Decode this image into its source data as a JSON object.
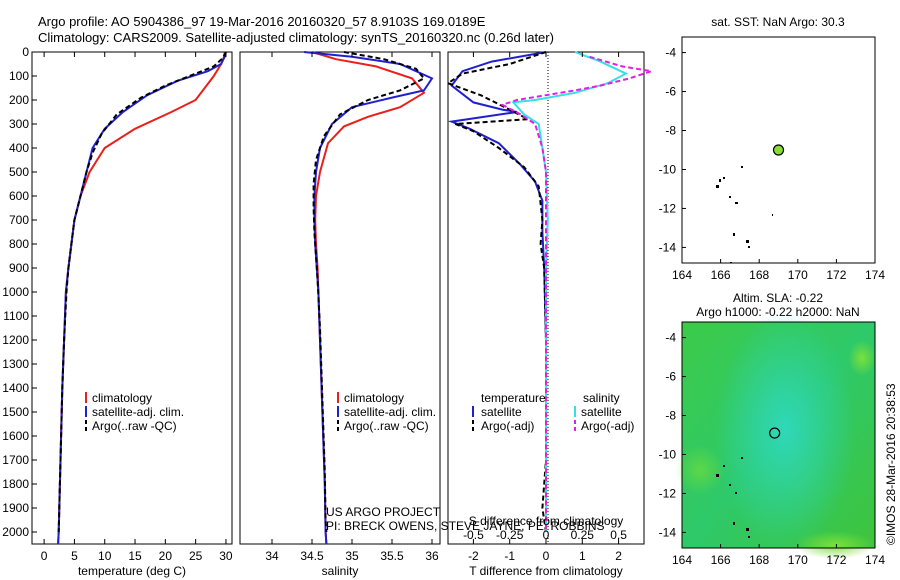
{
  "header": {
    "line1": "Argo profile: AO 5904386_97 19-Mar-2016 20160320_57 8.9103S 169.0189E",
    "line2": "Climatology: CARS2009. Satellite-adjusted climatology: synTS_20160320.nc (0.26d later)"
  },
  "side_label": "©IMOS 28-Mar-2016 20:38:53",
  "project_text": {
    "line1": "US ARGO PROJECT",
    "line2": "PI: BRECK OWENS, STEVE JAYNE, PE. ROBBINS"
  },
  "colors": {
    "climatology": "#e8201c",
    "satellite": "#2020d0",
    "argo": "#000000",
    "sal_sat": "#33e0e8",
    "sal_argo": "#e020e0",
    "map_dot": "#88dd33"
  },
  "chart_data": [
    {
      "type": "line",
      "id": "temperature",
      "xlabel": "temperature (deg C)",
      "ylabel": "",
      "xlim": [
        -2,
        31
      ],
      "ylim": [
        2050,
        0
      ],
      "xticks": [
        0,
        5,
        10,
        15,
        20,
        25,
        30
      ],
      "yticks": [
        0,
        100,
        200,
        300,
        400,
        500,
        600,
        700,
        800,
        900,
        1000,
        1100,
        1200,
        1300,
        1400,
        1500,
        1600,
        1700,
        1800,
        1900,
        2000
      ],
      "legend": [
        "climatology",
        "satellite-adj. clim.",
        "Argo(..raw -QC)"
      ],
      "series": [
        {
          "name": "climatology",
          "color": "#e8201c",
          "points": [
            [
              29.8,
              0
            ],
            [
              29.7,
              20
            ],
            [
              29.2,
              50
            ],
            [
              28,
              100
            ],
            [
              25,
              200
            ],
            [
              21,
              250
            ],
            [
              15,
              320
            ],
            [
              10,
              400
            ],
            [
              7.5,
              500
            ],
            [
              6,
              600
            ],
            [
              5,
              700
            ],
            [
              4.5,
              800
            ],
            [
              4,
              900
            ],
            [
              3.6,
              1000
            ],
            [
              3.3,
              1200
            ],
            [
              3,
              1400
            ],
            [
              2.8,
              1600
            ],
            [
              2.6,
              1800
            ],
            [
              2.4,
              2000
            ],
            [
              2.3,
              2050
            ]
          ]
        },
        {
          "name": "satellite-adj. clim.",
          "color": "#2020d0",
          "points": [
            [
              30,
              0
            ],
            [
              29.8,
              20
            ],
            [
              29.2,
              50
            ],
            [
              27,
              80
            ],
            [
              22,
              120
            ],
            [
              17,
              180
            ],
            [
              13,
              250
            ],
            [
              10,
              320
            ],
            [
              8,
              400
            ],
            [
              7,
              500
            ],
            [
              6,
              600
            ],
            [
              5,
              700
            ],
            [
              4.5,
              800
            ],
            [
              4,
              900
            ],
            [
              3.6,
              1000
            ],
            [
              3.3,
              1200
            ],
            [
              3,
              1400
            ],
            [
              2.8,
              1600
            ],
            [
              2.6,
              1800
            ],
            [
              2.4,
              2000
            ],
            [
              2.3,
              2050
            ]
          ]
        },
        {
          "name": "Argo(..raw -QC)",
          "color": "#000000",
          "points": [
            [
              30,
              0
            ],
            [
              29.5,
              25
            ],
            [
              28,
              60
            ],
            [
              24,
              100
            ],
            [
              20,
              140
            ],
            [
              16,
              190
            ],
            [
              12,
              260
            ],
            [
              9.5,
              340
            ],
            [
              8,
              420
            ],
            [
              7,
              500
            ],
            [
              6,
              600
            ],
            [
              5,
              700
            ],
            [
              4.5,
              800
            ],
            [
              4,
              900
            ],
            [
              3.7,
              1000
            ],
            [
              3.3,
              1200
            ],
            [
              3,
              1400
            ],
            [
              2.8,
              1600
            ],
            [
              2.6,
              1800
            ],
            [
              2.4,
              2000
            ]
          ]
        }
      ]
    },
    {
      "type": "line",
      "id": "salinity",
      "xlabel": "salinity",
      "xlim": [
        33.6,
        36.1
      ],
      "ylim": [
        2050,
        0
      ],
      "xticks": [
        34,
        34.5,
        35,
        35.5,
        36
      ],
      "legend": [
        "climatology",
        "satellite-adj. clim.",
        "Argo(..raw -QC)"
      ],
      "series": [
        {
          "name": "climatology",
          "color": "#e8201c",
          "points": [
            [
              34.5,
              0
            ],
            [
              34.8,
              30
            ],
            [
              35.3,
              60
            ],
            [
              35.75,
              110
            ],
            [
              35.9,
              170
            ],
            [
              35.6,
              230
            ],
            [
              35.2,
              270
            ],
            [
              34.9,
              310
            ],
            [
              34.7,
              380
            ],
            [
              34.6,
              500
            ],
            [
              34.55,
              600
            ],
            [
              34.54,
              700
            ],
            [
              34.55,
              800
            ],
            [
              34.57,
              900
            ],
            [
              34.58,
              1000
            ],
            [
              34.6,
              1200
            ],
            [
              34.62,
              1400
            ],
            [
              34.64,
              1600
            ],
            [
              34.66,
              1800
            ],
            [
              34.67,
              2000
            ],
            [
              34.68,
              2050
            ]
          ]
        },
        {
          "name": "satellite-adj. clim.",
          "color": "#2020d0",
          "points": [
            [
              34.4,
              0
            ],
            [
              35,
              20
            ],
            [
              35.6,
              50
            ],
            [
              36,
              110
            ],
            [
              35.9,
              160
            ],
            [
              35.5,
              190
            ],
            [
              35,
              230
            ],
            [
              34.75,
              300
            ],
            [
              34.6,
              400
            ],
            [
              34.55,
              500
            ],
            [
              34.53,
              600
            ],
            [
              34.53,
              700
            ],
            [
              34.54,
              800
            ],
            [
              34.56,
              900
            ],
            [
              34.58,
              1000
            ],
            [
              34.6,
              1200
            ],
            [
              34.62,
              1400
            ],
            [
              34.64,
              1600
            ],
            [
              34.66,
              1800
            ],
            [
              34.67,
              2000
            ],
            [
              34.68,
              2050
            ]
          ]
        },
        {
          "name": "Argo(..raw -QC)",
          "color": "#000000",
          "points": [
            [
              34.9,
              0
            ],
            [
              35.4,
              30
            ],
            [
              35.8,
              70
            ],
            [
              35.9,
              110
            ],
            [
              35.6,
              160
            ],
            [
              35.2,
              200
            ],
            [
              34.85,
              260
            ],
            [
              34.65,
              350
            ],
            [
              34.55,
              450
            ],
            [
              34.52,
              550
            ],
            [
              34.52,
              650
            ],
            [
              34.53,
              750
            ],
            [
              34.55,
              850
            ],
            [
              34.57,
              950
            ],
            [
              34.6,
              1150
            ],
            [
              34.62,
              1350
            ],
            [
              34.64,
              1550
            ],
            [
              34.66,
              1750
            ],
            [
              34.67,
              1950
            ],
            [
              34.68,
              2000
            ]
          ]
        }
      ]
    },
    {
      "type": "line",
      "id": "difference",
      "xlabel": "T difference from climatology",
      "top_axis_label": "S difference from climatology",
      "xlim": [
        -2.7,
        2.7
      ],
      "ylim": [
        2050,
        0
      ],
      "xticks": [
        -2,
        -1,
        0,
        1,
        2
      ],
      "top_ticks": [
        {
          "label": "-0.5",
          "x": -2
        },
        {
          "label": "-0.25",
          "x": -1
        },
        {
          "label": "0",
          "x": 0
        },
        {
          "label": "0.25",
          "x": 1
        },
        {
          "label": "0.5",
          "x": 2
        }
      ],
      "legend_left_title": "temperature",
      "legend_right_title": "salinity",
      "legend": [
        "satellite",
        "Argo(-adj)",
        "satellite",
        "Argo(-adj)"
      ],
      "series": [
        {
          "name": "satellite",
          "color": "#2020d0",
          "points": [
            [
              0,
              0
            ],
            [
              -1.5,
              40
            ],
            [
              -2.3,
              80
            ],
            [
              -2.6,
              140
            ],
            [
              -2,
              210
            ],
            [
              -1.2,
              240
            ],
            [
              -0.8,
              250
            ],
            [
              -2.6,
              290
            ],
            [
              -2.1,
              320
            ],
            [
              -1.3,
              380
            ],
            [
              -0.7,
              470
            ],
            [
              -0.3,
              540
            ],
            [
              -0.1,
              620
            ],
            [
              -0.1,
              750
            ],
            [
              -0.05,
              900
            ],
            [
              0,
              1200
            ],
            [
              0,
              2000
            ]
          ]
        },
        {
          "name": "Argo(-adj)",
          "color": "#000000",
          "points": [
            [
              0,
              0
            ],
            [
              -1,
              50
            ],
            [
              -2.3,
              90
            ],
            [
              -2.7,
              130
            ],
            [
              -1.8,
              180
            ],
            [
              -1,
              240
            ],
            [
              -0.5,
              280
            ],
            [
              -2.5,
              300
            ],
            [
              -2,
              330
            ],
            [
              -1.3,
              400
            ],
            [
              -0.6,
              480
            ],
            [
              -0.2,
              560
            ],
            [
              -0.1,
              700
            ],
            [
              -0.15,
              800
            ],
            [
              -0.05,
              900
            ],
            [
              0,
              1200
            ],
            [
              0,
              1700
            ],
            [
              -0.1,
              1900
            ],
            [
              0,
              2000
            ]
          ]
        },
        {
          "name": "satellite",
          "color": "#33e0e8",
          "points": [
            [
              0.8,
              0
            ],
            [
              1.5,
              40
            ],
            [
              2.2,
              90
            ],
            [
              1.7,
              130
            ],
            [
              0.8,
              170
            ],
            [
              -0.3,
              200
            ],
            [
              -0.9,
              210
            ],
            [
              -0.6,
              260
            ],
            [
              -0.2,
              300
            ],
            [
              -0.1,
              400
            ],
            [
              0,
              500
            ],
            [
              0.05,
              700
            ],
            [
              0,
              900
            ],
            [
              0,
              2000
            ]
          ]
        },
        {
          "name": "Argo(-adj)",
          "color": "#e020e0",
          "points": [
            [
              1.2,
              20
            ],
            [
              2.1,
              60
            ],
            [
              2.9,
              80
            ],
            [
              2.3,
              110
            ],
            [
              1.5,
              140
            ],
            [
              0.8,
              160
            ],
            [
              0,
              180
            ],
            [
              -0.8,
              200
            ],
            [
              -1.2,
              220
            ],
            [
              -0.7,
              260
            ],
            [
              -0.3,
              300
            ],
            [
              -0.1,
              400
            ],
            [
              0,
              500
            ],
            [
              0,
              800
            ],
            [
              0,
              2000
            ]
          ]
        }
      ]
    },
    {
      "type": "scatter",
      "id": "sst_map",
      "title": "sat. SST: NaN  Argo: 30.3",
      "xlim": [
        164,
        174
      ],
      "ylim": [
        -14.8,
        -3.2
      ],
      "xticks": [
        164,
        166,
        168,
        170,
        172,
        174
      ],
      "yticks": [
        -4,
        -6,
        -8,
        -10,
        -12,
        -14
      ],
      "points": [
        {
          "x": 169,
          "y": -9,
          "color": "#88dd33"
        }
      ]
    },
    {
      "type": "heatmap",
      "id": "sla_map",
      "title_line1": "Altim. SLA: -0.22",
      "title_line2": "Argo h1000: -0.22  h2000: NaN",
      "xlim": [
        164,
        174
      ],
      "ylim": [
        -14.8,
        -3.2
      ],
      "xticks": [
        164,
        166,
        168,
        170,
        172,
        174
      ],
      "yticks": [
        -4,
        -6,
        -8,
        -10,
        -12,
        -14
      ],
      "points": [
        {
          "x": 168.8,
          "y": -8.9
        }
      ]
    }
  ]
}
